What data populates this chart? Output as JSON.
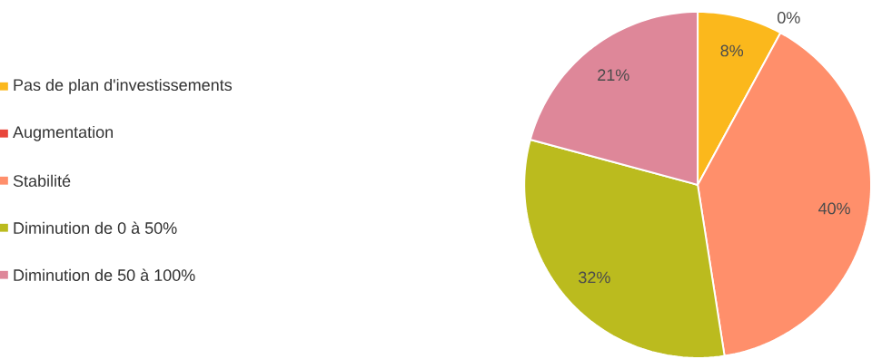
{
  "chart_data": {
    "type": "pie",
    "categories": [
      "Pas de plan d'investissements",
      "Augmentation",
      "Stabilité",
      "Diminution de 0 à 50%",
      "Diminution de 50 à 100%"
    ],
    "values": [
      8,
      0,
      40,
      32,
      21
    ],
    "colors": [
      "#fbb81c",
      "#e8463a",
      "#ff8f6b",
      "#bbbb1e",
      "#de8799"
    ],
    "value_labels": [
      "8%",
      "0%",
      "40%",
      "32%",
      "21%"
    ],
    "legend": "left"
  }
}
